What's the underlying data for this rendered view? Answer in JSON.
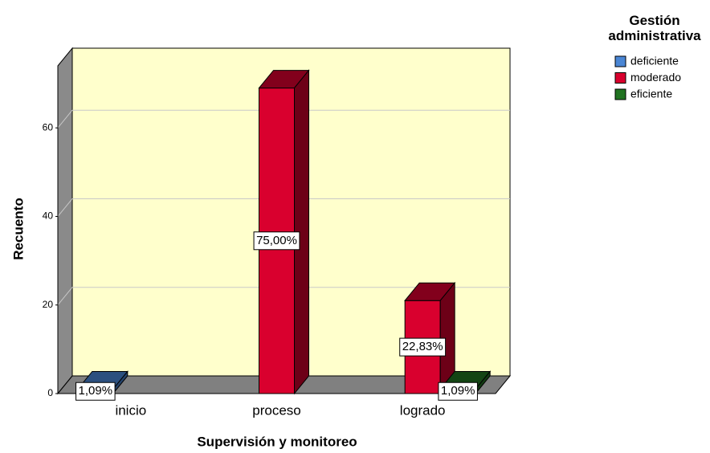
{
  "chart_data": {
    "type": "bar3d",
    "x_label": "Supervisión y monitoreo",
    "y_label": "Recuento",
    "legend_title": "Gestión administrativa",
    "categories": [
      "inicio",
      "proceso",
      "logrado"
    ],
    "series": [
      {
        "name": "deficiente",
        "color": "#4a86d4",
        "values": [
          1,
          null,
          null
        ],
        "value_labels": [
          "1,09%",
          null,
          null
        ]
      },
      {
        "name": "moderado",
        "color": "#d9002e",
        "values": [
          null,
          69,
          21
        ],
        "value_labels": [
          null,
          "75,00%",
          "22,83%"
        ]
      },
      {
        "name": "eficiente",
        "color": "#217321",
        "values": [
          null,
          null,
          1
        ],
        "value_labels": [
          null,
          null,
          "1,09%"
        ]
      }
    ],
    "ylim": [
      0,
      74
    ],
    "yticks": [
      0,
      20,
      40,
      60
    ],
    "grid": true,
    "legend_position": "top-right"
  }
}
